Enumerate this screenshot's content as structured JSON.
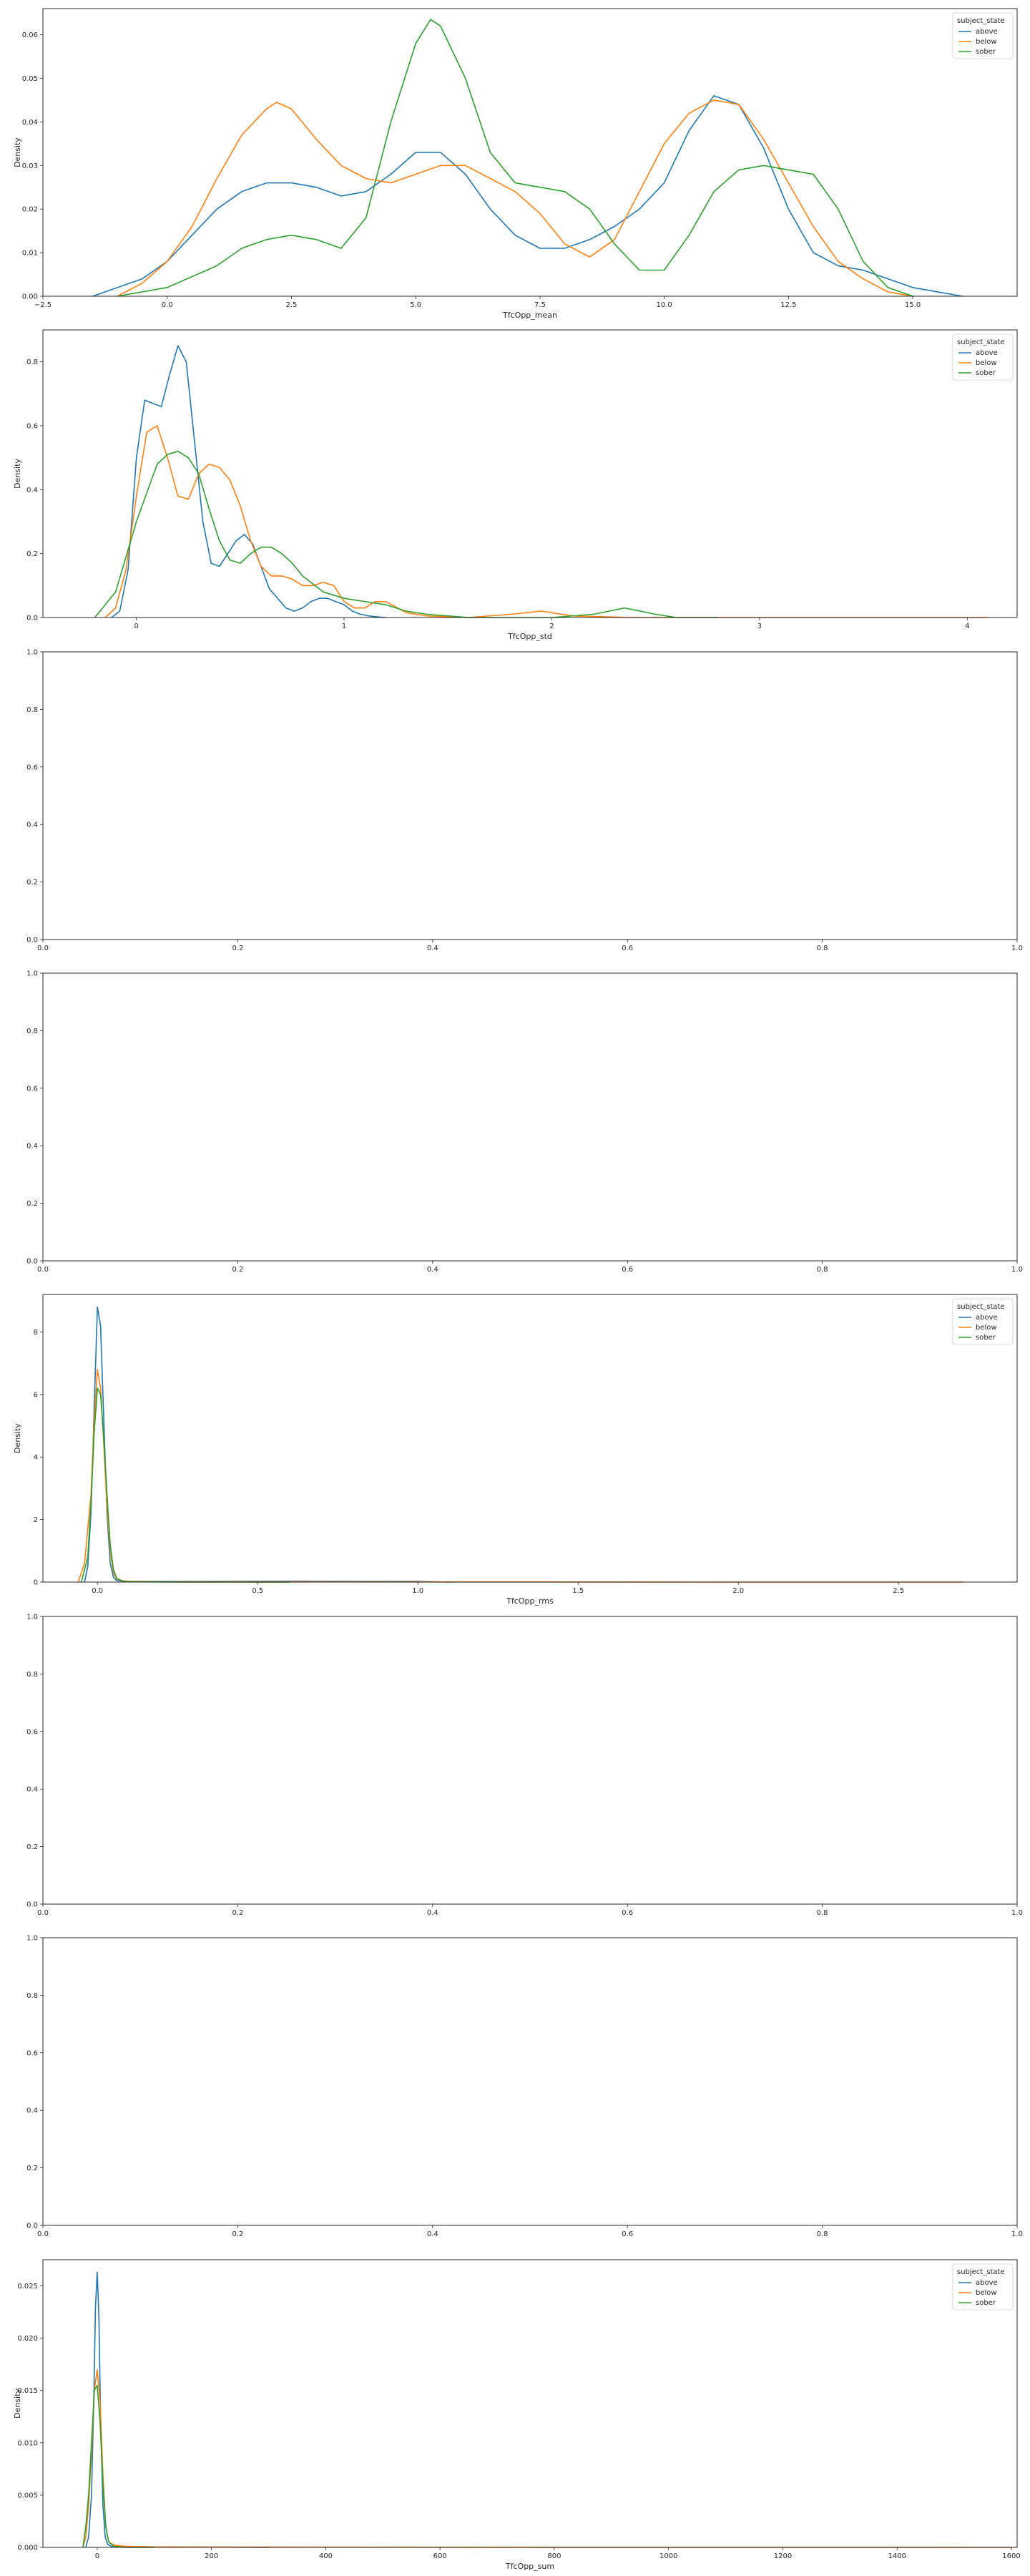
{
  "colors": {
    "above": "#1f77b4",
    "below": "#ff7f0e",
    "sober": "#2ca02c"
  },
  "chart_data": [
    {
      "type": "line",
      "xlabel": "TfcOpp_mean",
      "ylabel": "Density",
      "xlim": [
        -2.5,
        17.1
      ],
      "ylim": [
        0,
        0.066
      ],
      "xticks": [
        -2.5,
        0.0,
        2.5,
        5.0,
        7.5,
        10.0,
        12.5,
        15.0
      ],
      "xtick_labels": [
        "−2.5",
        "0.0",
        "2.5",
        "5.0",
        "7.5",
        "10.0",
        "12.5",
        "15.0"
      ],
      "yticks": [
        0,
        0.01,
        0.02,
        0.03,
        0.04,
        0.05,
        0.06
      ],
      "ytick_labels": [
        "0.00",
        "0.01",
        "0.02",
        "0.03",
        "0.04",
        "0.05",
        "0.06"
      ],
      "legend": {
        "title": "subject_state",
        "entries": [
          "above",
          "below",
          "sober"
        ],
        "loc": "upper right"
      },
      "series": [
        {
          "name": "above",
          "x": [
            -1.5,
            -0.5,
            0.0,
            0.5,
            1.0,
            1.5,
            2.0,
            2.5,
            3.0,
            3.5,
            4.0,
            4.5,
            5.0,
            5.5,
            6.0,
            6.5,
            7.0,
            7.5,
            8.0,
            8.5,
            9.0,
            9.5,
            10.0,
            10.5,
            11.0,
            11.5,
            12.0,
            12.5,
            13.0,
            13.5,
            14.0,
            14.5,
            15.0,
            15.5,
            16.0
          ],
          "y": [
            0.0,
            0.004,
            0.008,
            0.014,
            0.02,
            0.024,
            0.026,
            0.026,
            0.025,
            0.023,
            0.024,
            0.028,
            0.033,
            0.033,
            0.028,
            0.02,
            0.014,
            0.011,
            0.011,
            0.013,
            0.016,
            0.02,
            0.026,
            0.038,
            0.046,
            0.044,
            0.034,
            0.02,
            0.01,
            0.007,
            0.006,
            0.004,
            0.002,
            0.001,
            0.0
          ]
        },
        {
          "name": "below",
          "x": [
            -1.0,
            -0.5,
            0.0,
            0.5,
            1.0,
            1.5,
            2.0,
            2.2,
            2.5,
            3.0,
            3.5,
            4.0,
            4.5,
            5.0,
            5.5,
            6.0,
            6.5,
            7.0,
            7.5,
            8.0,
            8.5,
            9.0,
            9.5,
            10.0,
            10.5,
            11.0,
            11.5,
            12.0,
            12.5,
            13.0,
            13.5,
            14.0,
            14.5,
            15.0
          ],
          "y": [
            0.0,
            0.003,
            0.008,
            0.016,
            0.027,
            0.037,
            0.043,
            0.0445,
            0.043,
            0.036,
            0.03,
            0.027,
            0.026,
            0.028,
            0.03,
            0.03,
            0.027,
            0.024,
            0.019,
            0.012,
            0.009,
            0.013,
            0.024,
            0.035,
            0.042,
            0.045,
            0.044,
            0.036,
            0.026,
            0.016,
            0.008,
            0.004,
            0.001,
            0.0
          ]
        },
        {
          "name": "sober",
          "x": [
            -1.0,
            0.0,
            1.0,
            1.5,
            2.0,
            2.5,
            3.0,
            3.5,
            4.0,
            4.5,
            5.0,
            5.3,
            5.5,
            6.0,
            6.5,
            7.0,
            7.5,
            8.0,
            8.5,
            9.0,
            9.5,
            10.0,
            10.5,
            11.0,
            11.5,
            12.0,
            12.5,
            13.0,
            13.5,
            14.0,
            14.5,
            15.0
          ],
          "y": [
            0.0,
            0.002,
            0.007,
            0.011,
            0.013,
            0.014,
            0.013,
            0.011,
            0.018,
            0.04,
            0.058,
            0.0635,
            0.062,
            0.05,
            0.033,
            0.026,
            0.025,
            0.024,
            0.02,
            0.012,
            0.006,
            0.006,
            0.014,
            0.024,
            0.029,
            0.03,
            0.029,
            0.028,
            0.02,
            0.008,
            0.002,
            0.0
          ]
        }
      ]
    },
    {
      "type": "line",
      "xlabel": "TfcOpp_std",
      "ylabel": "Density",
      "xlim": [
        -0.45,
        4.24
      ],
      "ylim": [
        0,
        0.9
      ],
      "xticks": [
        0,
        1,
        2,
        3,
        4
      ],
      "xtick_labels": [
        "0",
        "1",
        "2",
        "3",
        "4"
      ],
      "yticks": [
        0,
        0.2,
        0.4,
        0.6,
        0.8
      ],
      "ytick_labels": [
        "0.0",
        "0.2",
        "0.4",
        "0.6",
        "0.8"
      ],
      "legend": {
        "title": "subject_state",
        "entries": [
          "above",
          "below",
          "sober"
        ],
        "loc": "upper right"
      },
      "series": [
        {
          "name": "above",
          "x": [
            -0.12,
            -0.08,
            -0.04,
            0.0,
            0.04,
            0.08,
            0.12,
            0.16,
            0.2,
            0.24,
            0.28,
            0.32,
            0.36,
            0.4,
            0.44,
            0.48,
            0.52,
            0.56,
            0.6,
            0.64,
            0.68,
            0.72,
            0.76,
            0.8,
            0.84,
            0.88,
            0.92,
            0.96,
            1.0,
            1.04,
            1.08,
            1.12,
            1.16,
            1.2
          ],
          "y": [
            0.0,
            0.02,
            0.15,
            0.5,
            0.68,
            0.67,
            0.66,
            0.76,
            0.85,
            0.8,
            0.55,
            0.3,
            0.17,
            0.16,
            0.2,
            0.24,
            0.26,
            0.23,
            0.16,
            0.09,
            0.06,
            0.03,
            0.02,
            0.03,
            0.05,
            0.06,
            0.06,
            0.05,
            0.04,
            0.02,
            0.01,
            0.005,
            0.002,
            0.0
          ]
        },
        {
          "name": "below",
          "x": [
            -0.15,
            -0.1,
            -0.05,
            0.0,
            0.05,
            0.1,
            0.15,
            0.2,
            0.25,
            0.3,
            0.35,
            0.4,
            0.45,
            0.5,
            0.55,
            0.6,
            0.65,
            0.7,
            0.75,
            0.8,
            0.85,
            0.9,
            0.95,
            1.0,
            1.05,
            1.1,
            1.15,
            1.2,
            1.3,
            1.4,
            1.6,
            1.8,
            1.95,
            2.1,
            2.4,
            3.0,
            4.1
          ],
          "y": [
            0.0,
            0.03,
            0.15,
            0.38,
            0.58,
            0.6,
            0.5,
            0.38,
            0.37,
            0.45,
            0.48,
            0.47,
            0.43,
            0.35,
            0.24,
            0.16,
            0.13,
            0.13,
            0.12,
            0.1,
            0.1,
            0.11,
            0.1,
            0.05,
            0.03,
            0.03,
            0.05,
            0.05,
            0.015,
            0.005,
            0.0,
            0.01,
            0.02,
            0.005,
            0.0,
            0.0,
            0.0
          ]
        },
        {
          "name": "sober",
          "x": [
            -0.2,
            -0.1,
            0.0,
            0.1,
            0.15,
            0.2,
            0.25,
            0.3,
            0.35,
            0.4,
            0.45,
            0.5,
            0.55,
            0.6,
            0.65,
            0.7,
            0.75,
            0.8,
            0.9,
            1.0,
            1.1,
            1.2,
            1.3,
            1.4,
            1.6,
            1.8,
            2.0,
            2.2,
            2.35,
            2.5,
            2.6,
            2.8
          ],
          "y": [
            0.0,
            0.08,
            0.3,
            0.48,
            0.51,
            0.52,
            0.5,
            0.45,
            0.34,
            0.24,
            0.18,
            0.17,
            0.2,
            0.22,
            0.22,
            0.2,
            0.17,
            0.13,
            0.08,
            0.06,
            0.05,
            0.04,
            0.02,
            0.01,
            0.0,
            0.0,
            0.0,
            0.01,
            0.03,
            0.01,
            0.0,
            0.0
          ]
        }
      ]
    },
    {
      "type": "line",
      "empty": true,
      "xlim": [
        0,
        1
      ],
      "ylim": [
        0,
        1
      ],
      "xticks": [
        0,
        0.2,
        0.4,
        0.6,
        0.8,
        1.0
      ],
      "xtick_labels": [
        "0.0",
        "0.2",
        "0.4",
        "0.6",
        "0.8",
        "1.0"
      ],
      "yticks": [
        0,
        0.2,
        0.4,
        0.6,
        0.8,
        1.0
      ],
      "ytick_labels": [
        "0.0",
        "0.2",
        "0.4",
        "0.6",
        "0.8",
        "1.0"
      ]
    },
    {
      "type": "line",
      "empty": true,
      "xlim": [
        0,
        1
      ],
      "ylim": [
        0,
        1
      ],
      "xticks": [
        0,
        0.2,
        0.4,
        0.6,
        0.8,
        1.0
      ],
      "xtick_labels": [
        "0.0",
        "0.2",
        "0.4",
        "0.6",
        "0.8",
        "1.0"
      ],
      "yticks": [
        0,
        0.2,
        0.4,
        0.6,
        0.8,
        1.0
      ],
      "ytick_labels": [
        "0.0",
        "0.2",
        "0.4",
        "0.6",
        "0.8",
        "1.0"
      ]
    },
    {
      "type": "line",
      "xlabel": "TfcOpp_rms",
      "ylabel": "Density",
      "xlim": [
        -0.17,
        2.87
      ],
      "ylim": [
        0,
        9.2
      ],
      "xticks": [
        0.0,
        0.5,
        1.0,
        1.5,
        2.0,
        2.5
      ],
      "xtick_labels": [
        "0.0",
        "0.5",
        "1.0",
        "1.5",
        "2.0",
        "2.5"
      ],
      "yticks": [
        0,
        2,
        4,
        6,
        8
      ],
      "ytick_labels": [
        "0",
        "2",
        "4",
        "6",
        "8"
      ],
      "legend": {
        "title": "subject_state",
        "entries": [
          "above",
          "below",
          "sober"
        ],
        "loc": "upper right"
      },
      "series": [
        {
          "name": "above",
          "x": [
            -0.04,
            -0.03,
            -0.02,
            -0.01,
            0.0,
            0.01,
            0.02,
            0.03,
            0.04,
            0.05,
            0.06,
            0.08,
            0.1,
            0.3,
            0.6,
            1.0,
            1.1
          ],
          "y": [
            0.0,
            0.5,
            2.2,
            5.6,
            8.8,
            8.2,
            5.2,
            2.2,
            0.6,
            0.15,
            0.05,
            0.03,
            0.02,
            0.02,
            0.03,
            0.02,
            0.0
          ]
        },
        {
          "name": "below",
          "x": [
            -0.06,
            -0.04,
            -0.02,
            -0.01,
            0.0,
            0.01,
            0.02,
            0.03,
            0.04,
            0.05,
            0.06,
            0.08,
            0.1,
            0.2,
            0.6,
            1.2,
            2.0,
            2.7
          ],
          "y": [
            0.0,
            0.6,
            2.8,
            5.2,
            6.8,
            6.2,
            4.4,
            2.4,
            1.0,
            0.3,
            0.1,
            0.04,
            0.02,
            0.01,
            0.01,
            0.005,
            0.0,
            0.0
          ]
        },
        {
          "name": "sober",
          "x": [
            -0.05,
            -0.03,
            -0.02,
            -0.01,
            0.0,
            0.01,
            0.02,
            0.03,
            0.04,
            0.05,
            0.06,
            0.08,
            0.1,
            0.3,
            0.6
          ],
          "y": [
            0.0,
            0.8,
            2.5,
            4.8,
            6.2,
            6.0,
            4.6,
            2.8,
            1.2,
            0.4,
            0.12,
            0.03,
            0.01,
            0.0,
            0.0
          ]
        }
      ]
    },
    {
      "type": "line",
      "empty": true,
      "xlim": [
        0,
        1
      ],
      "ylim": [
        0,
        1
      ],
      "xticks": [
        0,
        0.2,
        0.4,
        0.6,
        0.8,
        1.0
      ],
      "xtick_labels": [
        "0.0",
        "0.2",
        "0.4",
        "0.6",
        "0.8",
        "1.0"
      ],
      "yticks": [
        0,
        0.2,
        0.4,
        0.6,
        0.8,
        1.0
      ],
      "ytick_labels": [
        "0.0",
        "0.2",
        "0.4",
        "0.6",
        "0.8",
        "1.0"
      ]
    },
    {
      "type": "line",
      "empty": true,
      "xlim": [
        0,
        1
      ],
      "ylim": [
        0,
        1
      ],
      "xticks": [
        0,
        0.2,
        0.4,
        0.6,
        0.8,
        1.0
      ],
      "xtick_labels": [
        "0.0",
        "0.2",
        "0.4",
        "0.6",
        "0.8",
        "1.0"
      ],
      "yticks": [
        0,
        0.2,
        0.4,
        0.6,
        0.8,
        1.0
      ],
      "ytick_labels": [
        "0.0",
        "0.2",
        "0.4",
        "0.6",
        "0.8",
        "1.0"
      ]
    },
    {
      "type": "line",
      "xlabel": "TfcOpp_sum",
      "ylabel": "Density",
      "xlim": [
        -95,
        1610
      ],
      "ylim": [
        0,
        0.0275
      ],
      "xticks": [
        0,
        200,
        400,
        600,
        800,
        1000,
        1200,
        1400,
        1600
      ],
      "xtick_labels": [
        "0",
        "200",
        "400",
        "600",
        "800",
        "1000",
        "1200",
        "1400",
        "1600"
      ],
      "yticks": [
        0,
        0.005,
        0.01,
        0.015,
        0.02,
        0.025
      ],
      "ytick_labels": [
        "0.000",
        "0.005",
        "0.010",
        "0.015",
        "0.020",
        "0.025"
      ],
      "legend": {
        "title": "subject_state",
        "entries": [
          "above",
          "below",
          "sober"
        ],
        "loc": "upper right"
      },
      "series": [
        {
          "name": "above",
          "x": [
            -20,
            -15,
            -10,
            -6,
            -3,
            0,
            3,
            6,
            10,
            14,
            18,
            25,
            40,
            100,
            200,
            300
          ],
          "y": [
            0.0,
            0.001,
            0.005,
            0.014,
            0.023,
            0.0263,
            0.022,
            0.012,
            0.004,
            0.001,
            0.0003,
            0.0001,
            0.0001,
            5e-05,
            3e-05,
            0.0
          ]
        },
        {
          "name": "below",
          "x": [
            -25,
            -20,
            -15,
            -10,
            -5,
            0,
            5,
            10,
            15,
            20,
            30,
            50,
            100,
            400,
            800,
            1200,
            1600
          ],
          "y": [
            0.0,
            0.001,
            0.004,
            0.009,
            0.015,
            0.017,
            0.014,
            0.007,
            0.002,
            0.0005,
            0.0002,
            0.0001,
            5e-05,
            2e-05,
            1e-05,
            5e-06,
            0.0
          ]
        },
        {
          "name": "sober",
          "x": [
            -25,
            -20,
            -15,
            -10,
            -5,
            0,
            5,
            10,
            15,
            20,
            30,
            50,
            100
          ],
          "y": [
            0.0,
            0.002,
            0.005,
            0.01,
            0.015,
            0.0155,
            0.012,
            0.006,
            0.002,
            0.0005,
            0.0001,
            0.0,
            0.0
          ]
        }
      ]
    }
  ]
}
